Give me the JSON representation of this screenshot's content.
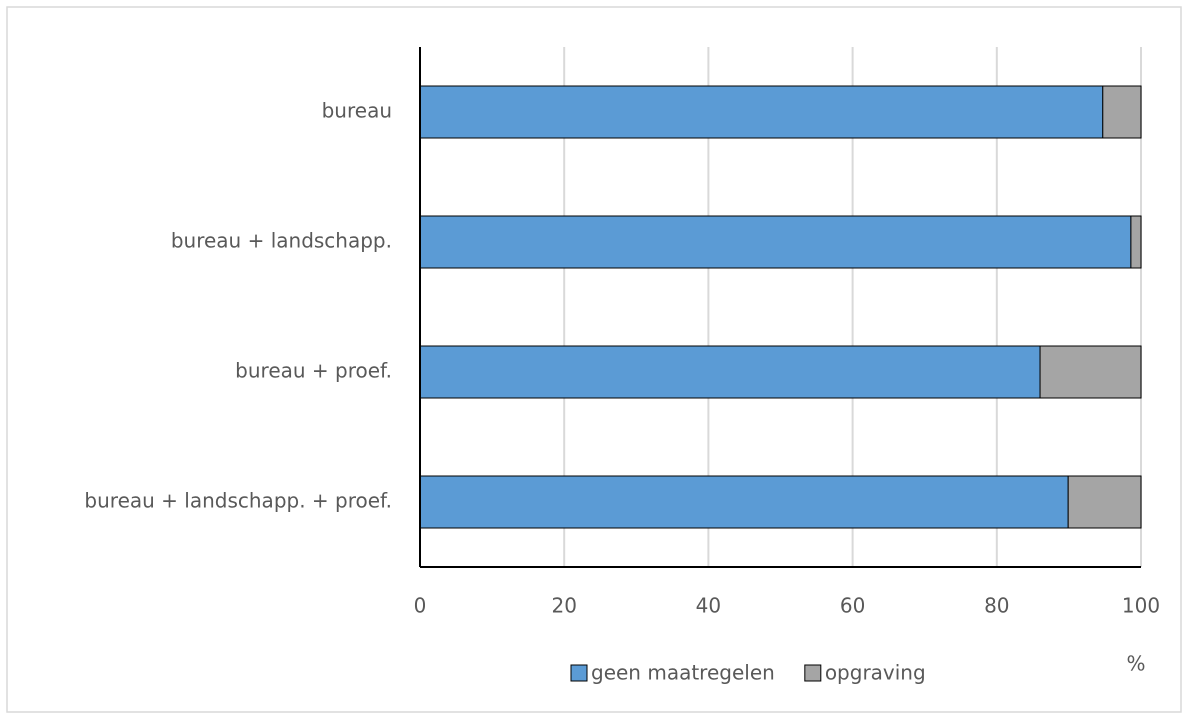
{
  "chart_data": {
    "type": "bar",
    "orientation": "horizontal",
    "stacked": true,
    "categories": [
      "bureau",
      "bureau + landschapp.",
      "bureau + proef.",
      "bureau + landschapp. + proef."
    ],
    "series": [
      {
        "name": "geen maatregelen",
        "color": "#5b9bd5",
        "values": [
          94.7,
          98.6,
          86.0,
          89.9
        ]
      },
      {
        "name": "opgraving",
        "color": "#a5a5a5",
        "values": [
          5.3,
          1.4,
          14.0,
          10.1
        ]
      }
    ],
    "xlabel": "%",
    "xlim": [
      0,
      100
    ],
    "xticks": [
      0,
      20,
      40,
      60,
      80,
      100
    ],
    "grid": true,
    "legend": "bottom"
  }
}
